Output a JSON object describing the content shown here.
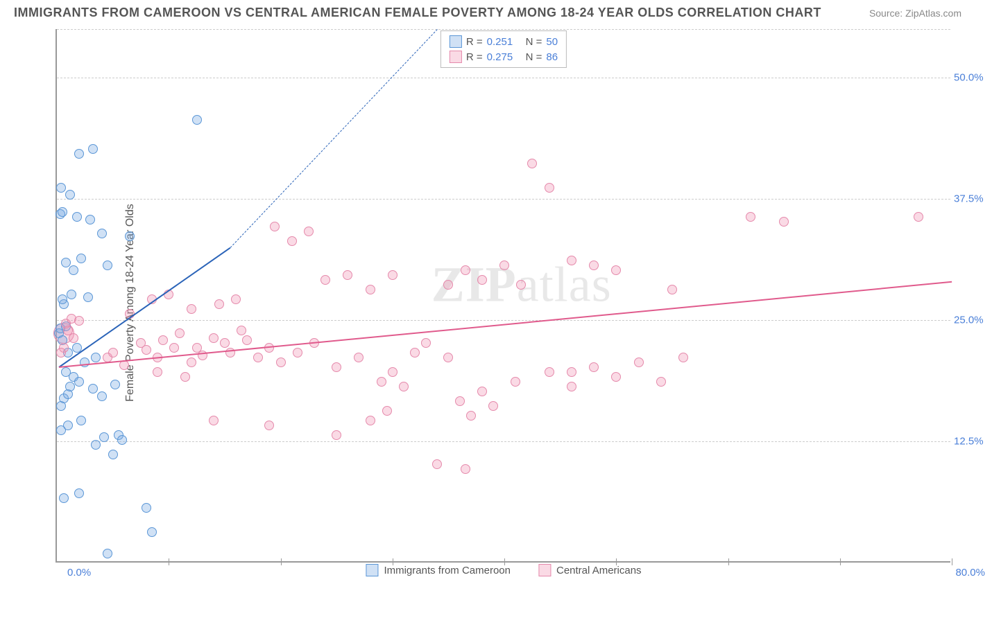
{
  "header": {
    "title": "IMMIGRANTS FROM CAMEROON VS CENTRAL AMERICAN FEMALE POVERTY AMONG 18-24 YEAR OLDS CORRELATION CHART",
    "source": "Source: ZipAtlas.com"
  },
  "watermark": {
    "part1": "ZIP",
    "part2": "atlas"
  },
  "chart": {
    "type": "scatter",
    "xlim": [
      0,
      80
    ],
    "ylim": [
      0,
      55
    ],
    "x_origin_label": "0.0%",
    "x_max_label": "80.0%",
    "y_ticks": [
      12.5,
      25.0,
      37.5,
      50.0
    ],
    "y_tick_labels": [
      "12.5%",
      "25.0%",
      "37.5%",
      "50.0%"
    ],
    "x_tickmarks": [
      10,
      20,
      30,
      40,
      50,
      60,
      70,
      80
    ],
    "y_axis_label": "Female Poverty Among 18-24 Year Olds",
    "background_color": "#ffffff",
    "grid_color": "#cccccc",
    "axis_color": "#999999",
    "tick_font_color": "#4a7fd8",
    "label_font_color": "#555555",
    "label_fontsize": 16,
    "tick_fontsize": 15,
    "marker_radius": 7,
    "marker_stroke_width": 1.2,
    "series": [
      {
        "name": "Immigrants from Cameroon",
        "legend_label": "Immigrants from Cameroon",
        "fill": "rgba(120,170,225,0.35)",
        "stroke": "#5a96d6",
        "line_color": "#2a63b8",
        "R": "0.251",
        "N": "50",
        "trend": {
          "x1": 0.2,
          "y1": 20.2,
          "x2": 15.5,
          "y2": 32.5
        },
        "trend_dash": {
          "x1": 15.5,
          "y1": 32.5,
          "x2": 34,
          "y2": 55
        },
        "points": [
          [
            0.2,
            23.5
          ],
          [
            0.3,
            24.0
          ],
          [
            0.5,
            22.8
          ],
          [
            0.6,
            26.5
          ],
          [
            0.8,
            24.2
          ],
          [
            0.4,
            16.0
          ],
          [
            0.6,
            16.8
          ],
          [
            1.0,
            17.2
          ],
          [
            1.5,
            19.0
          ],
          [
            0.3,
            35.8
          ],
          [
            0.5,
            36.0
          ],
          [
            1.8,
            35.5
          ],
          [
            3.0,
            35.2
          ],
          [
            0.4,
            38.5
          ],
          [
            1.2,
            37.8
          ],
          [
            2.0,
            42.0
          ],
          [
            3.2,
            42.5
          ],
          [
            1.5,
            30.0
          ],
          [
            2.2,
            31.2
          ],
          [
            0.8,
            30.8
          ],
          [
            4.0,
            33.8
          ],
          [
            1.0,
            21.5
          ],
          [
            1.8,
            22.0
          ],
          [
            2.5,
            20.5
          ],
          [
            3.5,
            21.0
          ],
          [
            0.5,
            27.0
          ],
          [
            1.3,
            27.5
          ],
          [
            2.8,
            27.2
          ],
          [
            0.4,
            13.5
          ],
          [
            1.0,
            14.0
          ],
          [
            2.2,
            14.5
          ],
          [
            3.5,
            12.0
          ],
          [
            4.2,
            12.8
          ],
          [
            5.0,
            11.0
          ],
          [
            5.5,
            13.0
          ],
          [
            0.6,
            6.5
          ],
          [
            2.0,
            7.0
          ],
          [
            8.0,
            5.5
          ],
          [
            8.5,
            3.0
          ],
          [
            4.5,
            0.8
          ],
          [
            1.2,
            18.0
          ],
          [
            2.0,
            18.5
          ],
          [
            3.2,
            17.8
          ],
          [
            4.0,
            17.0
          ],
          [
            5.2,
            18.2
          ],
          [
            0.8,
            19.5
          ],
          [
            12.5,
            45.5
          ],
          [
            6.5,
            33.5
          ],
          [
            5.8,
            12.5
          ],
          [
            4.5,
            30.5
          ]
        ]
      },
      {
        "name": "Central Americans",
        "legend_label": "Central Americans",
        "fill": "rgba(240,150,180,0.35)",
        "stroke": "#e589ab",
        "line_color": "#e05a8c",
        "R": "0.275",
        "N": "86",
        "trend": {
          "x1": 0.2,
          "y1": 20.2,
          "x2": 80,
          "y2": 29.0
        },
        "points": [
          [
            0.8,
            24.5
          ],
          [
            1.0,
            23.8
          ],
          [
            1.3,
            25.0
          ],
          [
            0.6,
            22.0
          ],
          [
            1.5,
            23.0
          ],
          [
            2.0,
            24.8
          ],
          [
            0.4,
            21.5
          ],
          [
            4.5,
            21.0
          ],
          [
            5.0,
            21.5
          ],
          [
            6.0,
            20.2
          ],
          [
            7.5,
            22.5
          ],
          [
            8.0,
            21.8
          ],
          [
            9.0,
            21.0
          ],
          [
            9.5,
            22.8
          ],
          [
            10.5,
            22.0
          ],
          [
            11.0,
            23.5
          ],
          [
            12.0,
            20.5
          ],
          [
            12.5,
            22.0
          ],
          [
            13.0,
            21.2
          ],
          [
            14.0,
            23.0
          ],
          [
            15.0,
            22.5
          ],
          [
            15.5,
            21.5
          ],
          [
            16.5,
            23.8
          ],
          [
            17.0,
            22.8
          ],
          [
            8.5,
            27.0
          ],
          [
            10.0,
            27.5
          ],
          [
            12.0,
            26.0
          ],
          [
            14.5,
            26.5
          ],
          [
            16.0,
            27.0
          ],
          [
            18.0,
            21.0
          ],
          [
            19.0,
            22.0
          ],
          [
            20.0,
            20.5
          ],
          [
            21.5,
            21.5
          ],
          [
            23.0,
            22.5
          ],
          [
            25.0,
            20.0
          ],
          [
            27.0,
            21.0
          ],
          [
            29.0,
            18.5
          ],
          [
            30.0,
            19.5
          ],
          [
            31.0,
            18.0
          ],
          [
            32.0,
            21.5
          ],
          [
            33.0,
            22.5
          ],
          [
            35.0,
            21.0
          ],
          [
            36.0,
            16.5
          ],
          [
            37.0,
            15.0
          ],
          [
            38.0,
            17.5
          ],
          [
            39.0,
            16.0
          ],
          [
            41.0,
            18.5
          ],
          [
            44.0,
            19.5
          ],
          [
            46.0,
            18.0
          ],
          [
            48.0,
            20.0
          ],
          [
            19.5,
            34.5
          ],
          [
            21.0,
            33.0
          ],
          [
            22.5,
            34.0
          ],
          [
            24.0,
            29.0
          ],
          [
            26.0,
            29.5
          ],
          [
            28.0,
            28.0
          ],
          [
            30.0,
            29.5
          ],
          [
            35.0,
            28.5
          ],
          [
            36.5,
            30.0
          ],
          [
            38.0,
            29.0
          ],
          [
            40.0,
            30.5
          ],
          [
            41.5,
            28.5
          ],
          [
            42.5,
            41.0
          ],
          [
            44.0,
            38.5
          ],
          [
            46.0,
            31.0
          ],
          [
            48.0,
            30.5
          ],
          [
            50.0,
            19.0
          ],
          [
            52.0,
            20.5
          ],
          [
            54.0,
            18.5
          ],
          [
            55.0,
            28.0
          ],
          [
            56.0,
            21.0
          ],
          [
            62.0,
            35.5
          ],
          [
            65.0,
            35.0
          ],
          [
            77.0,
            35.5
          ],
          [
            14.0,
            14.5
          ],
          [
            19.0,
            14.0
          ],
          [
            25.0,
            13.0
          ],
          [
            28.0,
            14.5
          ],
          [
            29.5,
            15.5
          ],
          [
            34.0,
            10.0
          ],
          [
            36.5,
            9.5
          ],
          [
            6.5,
            25.5
          ],
          [
            9.0,
            19.5
          ],
          [
            11.5,
            19.0
          ],
          [
            46.0,
            19.5
          ],
          [
            50.0,
            30.0
          ]
        ]
      }
    ],
    "stats_legend": {
      "r_prefix": "R  = ",
      "n_prefix": "N  = "
    },
    "bottom_legend_items": [
      "Immigrants from Cameroon",
      "Central Americans"
    ]
  }
}
